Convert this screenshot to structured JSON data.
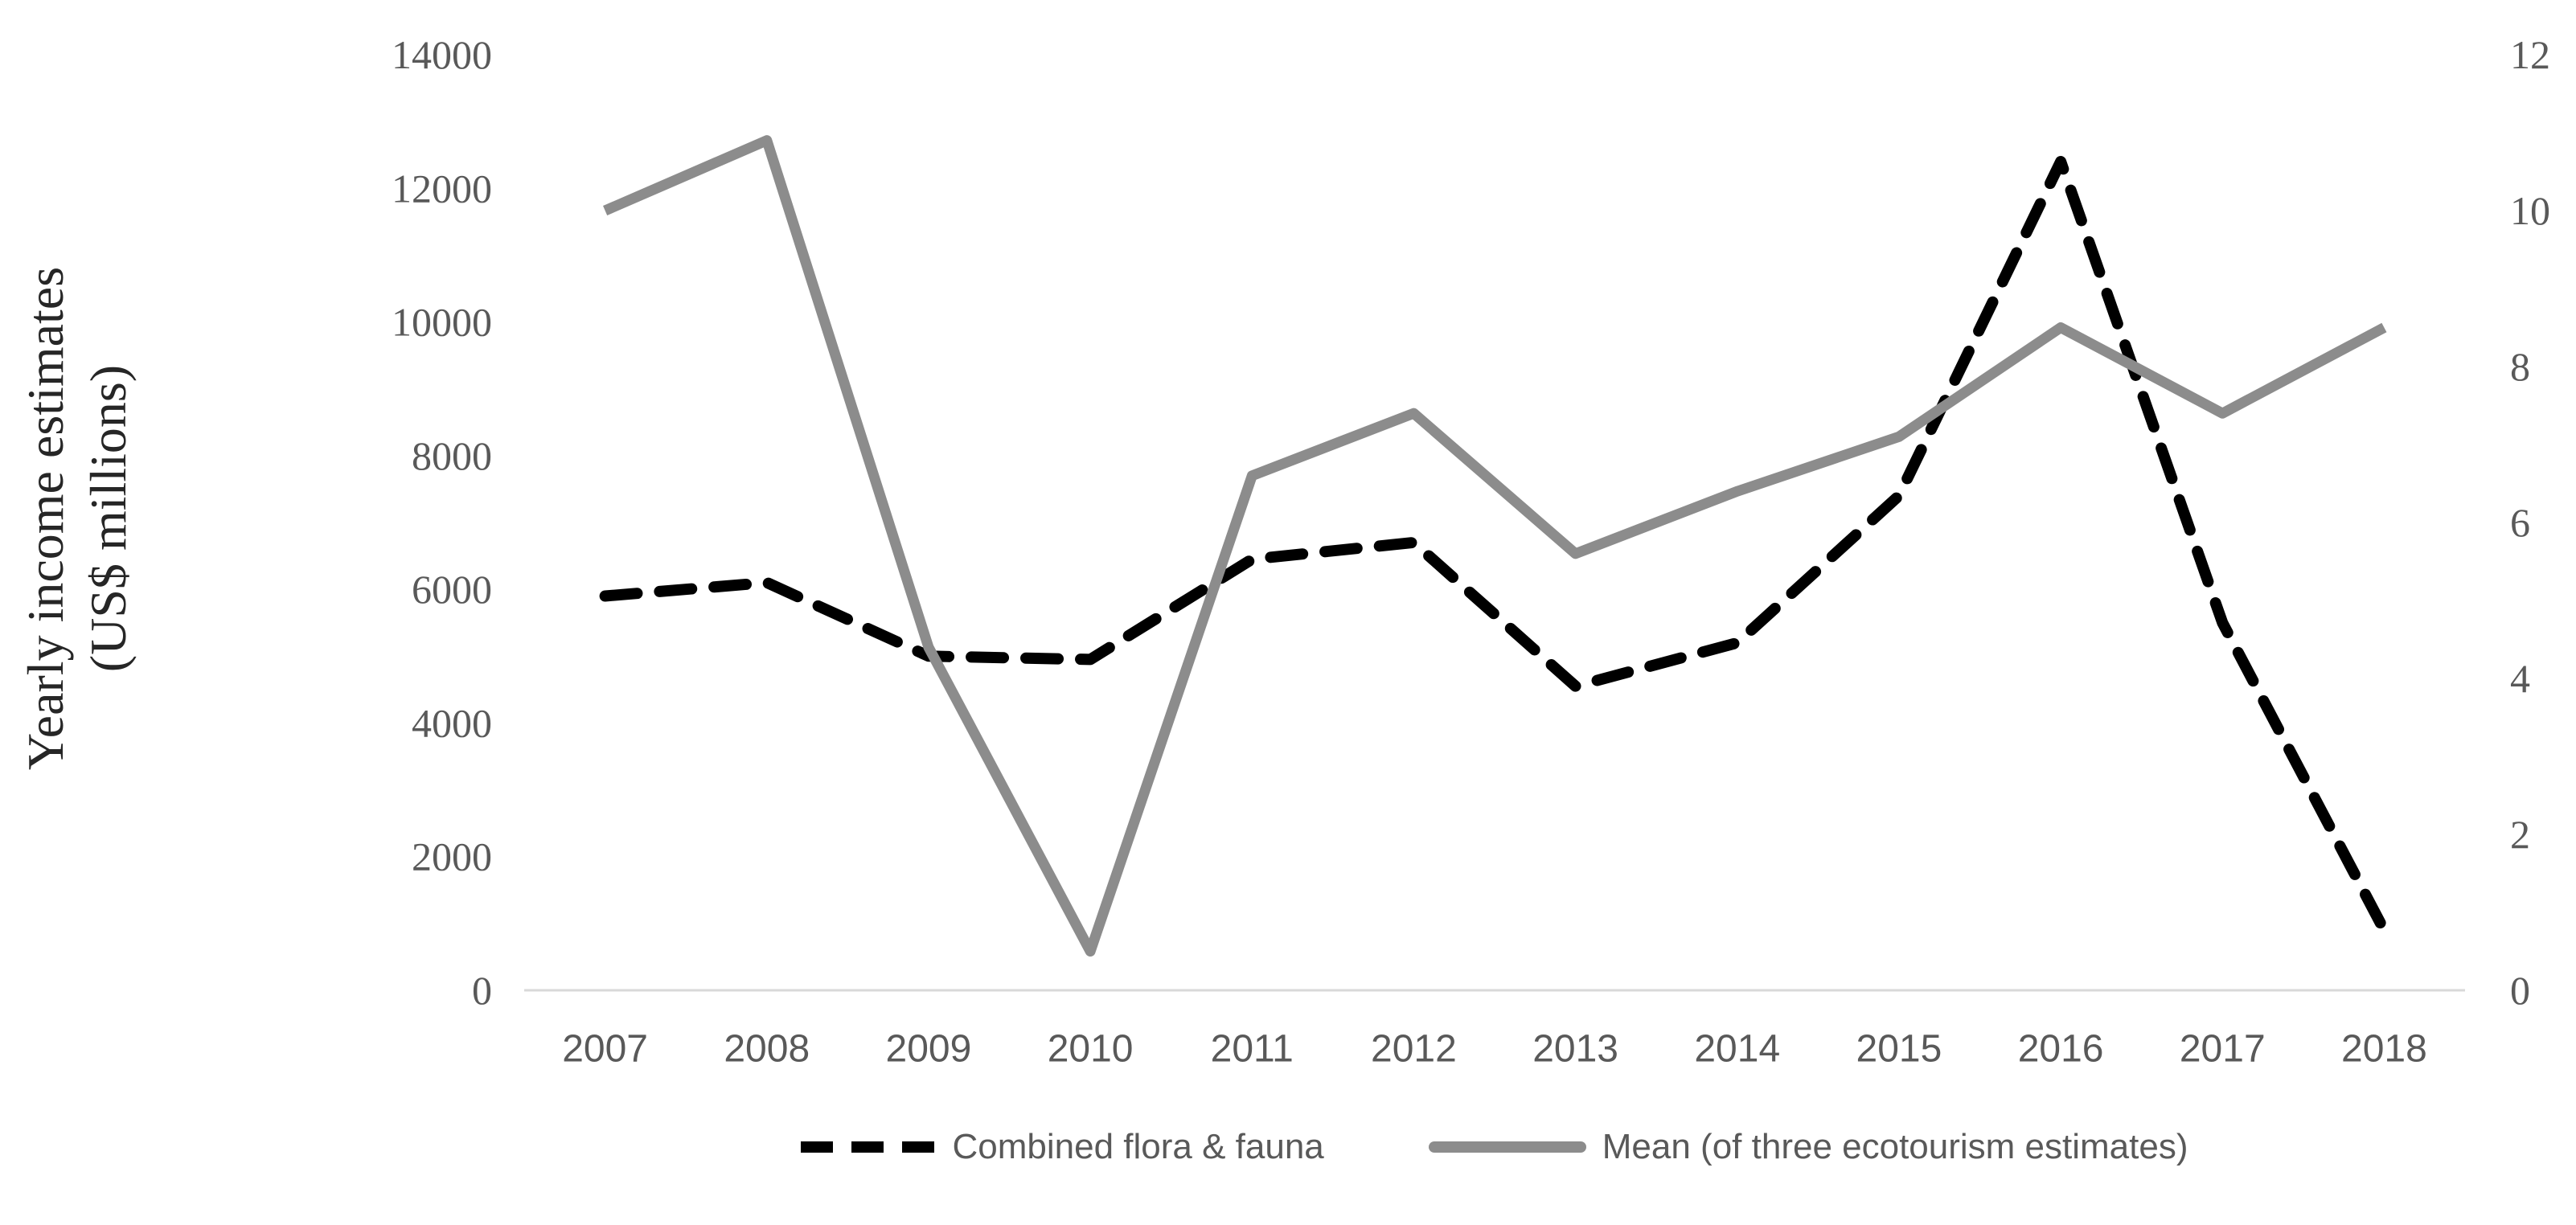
{
  "chart_data": {
    "type": "line",
    "title": "",
    "xlabel": "",
    "ylabel": "Yearly income estimates (US$ millions)",
    "ylabel_line1": "Yearly income estimates",
    "ylabel_line2": "(US$ millions)",
    "categories": [
      "2007",
      "2008",
      "2009",
      "2010",
      "2011",
      "2012",
      "2013",
      "2014",
      "2015",
      "2016",
      "2017",
      "2018"
    ],
    "series": [
      {
        "name": "Combined flora & fauna",
        "axis": "left",
        "color": "#000000",
        "line_style": "dashed",
        "values": [
          5900,
          6100,
          5000,
          4950,
          6450,
          6700,
          4550,
          5200,
          7400,
          12400,
          5500,
          900
        ]
      },
      {
        "name": "Mean (of three ecotourism estimates)",
        "axis": "right",
        "color": "#8C8C8C",
        "line_style": "solid",
        "values": [
          10.0,
          10.9,
          4.4,
          0.5,
          6.6,
          7.4,
          5.6,
          6.4,
          7.1,
          8.5,
          7.4,
          8.5
        ]
      }
    ],
    "left_axis": {
      "min": 0,
      "max": 14000,
      "tick_step": 2000,
      "ticks": [
        "14000",
        "12000",
        "10000",
        "8000",
        "6000",
        "4000",
        "2000",
        "0"
      ]
    },
    "right_axis": {
      "min": 0,
      "max": 12,
      "tick_step": 2,
      "ticks": [
        "12",
        "10",
        "8",
        "6",
        "4",
        "2",
        "0"
      ]
    },
    "grid": "off",
    "legend_position": "bottom"
  },
  "colors": {
    "axis_line": "#D9D9D9",
    "tick_label": "#595959",
    "legend_text": "#595959",
    "axis_title_text": "#262626"
  }
}
